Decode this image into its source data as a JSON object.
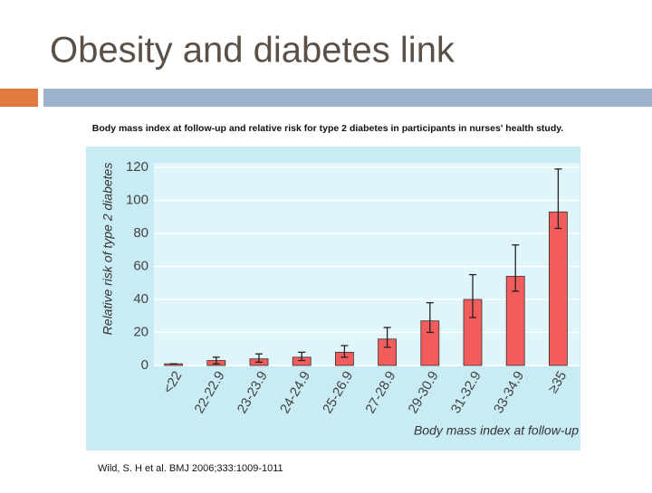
{
  "slide": {
    "title": "Obesity and diabetes link",
    "caption": "Body mass index at follow-up and relative risk for type 2 diabetes in participants in nurses' health study.",
    "citation": "Wild, S. H et al. BMJ 2006;333:1009-1011"
  },
  "chart_data": {
    "type": "bar",
    "xlabel": "Body mass index at follow-up",
    "ylabel": "Relative risk of type 2 diabetes",
    "categories": [
      "<22",
      "22-22.9",
      "23-23.9",
      "24-24.9",
      "25-26.9",
      "27-28.9",
      "29-30.9",
      "31-32.9",
      "33-34.9",
      "≥35"
    ],
    "values": [
      1,
      3,
      4,
      5,
      8,
      16,
      27,
      40,
      54,
      93
    ],
    "upper": [
      1,
      5,
      7,
      8,
      12,
      23,
      38,
      55,
      73,
      119
    ],
    "lower": [
      1,
      1,
      2,
      3,
      5,
      11,
      20,
      29,
      45,
      83
    ],
    "color": "#f25c5c",
    "ylim": [
      0,
      120
    ],
    "yticks": [
      0,
      20,
      40,
      60,
      80,
      100,
      120
    ],
    "grid": true
  }
}
